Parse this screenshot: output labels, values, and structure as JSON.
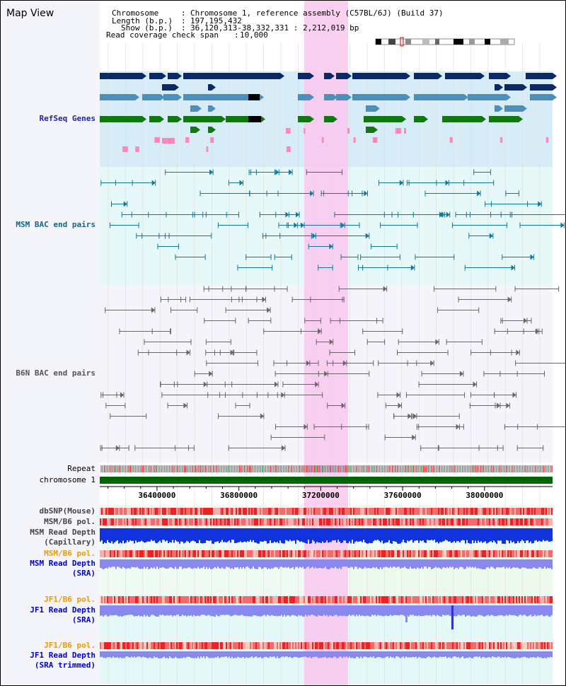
{
  "header": {
    "title": "Map View",
    "chromosome_key": "Chromosome",
    "chromosome_value": "Chromosome 1, reference assembly (C57BL/6J) (Build 37)",
    "length_key": "Length (b.p.)",
    "length_value": "197,195,432",
    "show_key": "Show (b.p.)",
    "show_value": "36,120,313-38,332,331 : 2,212,019 bp",
    "span_key": "Read coverage check span",
    "span_value": "10,000"
  },
  "tracks": {
    "refseq": {
      "label": "RefSeq Genes",
      "color": "#2222aa"
    },
    "msm_bac": {
      "label": "MSM BAC end pairs",
      "color": "#116688"
    },
    "b6n_bac": {
      "label": "B6N BAC end pairs",
      "color": "#555555"
    },
    "repeat": {
      "label": "Repeat"
    },
    "chromosome": {
      "label": "chromosome 1"
    },
    "dbsnp": {
      "label": "dbSNP(Mouse)"
    },
    "msm_b6_pol_1": {
      "label": "MSM/B6 pol."
    },
    "msm_read_depth_cap": {
      "label_1": "MSM Read Depth",
      "label_2": "(Capillary)"
    },
    "msm_b6_pol_2": {
      "label": "MSM/B6 pol.",
      "color": "#ee9900"
    },
    "msm_read_depth_sra": {
      "label_1": "MSM Read Depth",
      "label_2": "(SRA)",
      "color": "#0000cc"
    },
    "jf1_b6_pol_1": {
      "label": "JF1/B6 pol.",
      "color": "#ee9900"
    },
    "jf1_read_depth_sra": {
      "label_1": "JF1 Read Depth",
      "label_2": "(SRA)",
      "color": "#0000cc"
    },
    "jf1_b6_pol_2": {
      "label": "JF1/B6 pol.",
      "color": "#ee9900"
    },
    "jf1_read_depth_trim": {
      "label_1": "JF1 Read Depth",
      "label_2": "(SRA trimmed)",
      "color": "#0000cc"
    }
  },
  "axis": {
    "ticks": [
      36400000,
      36800000,
      37200000,
      37600000,
      38000000
    ],
    "labels": [
      "36400000",
      "36800000",
      "37200000",
      "37600000",
      "38000000"
    ],
    "range": [
      36120313,
      38332331
    ]
  },
  "highlight": {
    "color": "#f9c8ee"
  },
  "colors": {
    "refseq_bg": "#d8ecf8",
    "msm_bg": "#e6f8f8",
    "b6n_bg": "#f4f4fa",
    "gene_navy": "#0a2a66",
    "gene_teal": "#4a90b8",
    "gene_green": "#117711",
    "pink": "#ff88bb",
    "chrom_green": "#006600",
    "depth_blue": "#1133dd",
    "depth_light": "#8888ee"
  }
}
